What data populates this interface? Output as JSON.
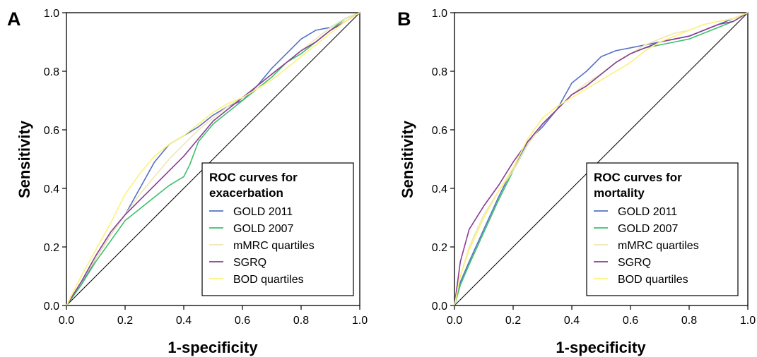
{
  "colors": {
    "GOLD 2011": "#5470c6",
    "GOLD 2007": "#3cc06a",
    "mMRC quartiles": "#f0e6b4",
    "SGRQ": "#8a3c94",
    "BOD quartiles": "#fbf27a"
  },
  "chart_data": [
    {
      "type": "line",
      "panel_label": "A",
      "xlabel": "1-specificity",
      "ylabel": "Sensitivity",
      "xlim": [
        0,
        1
      ],
      "ylim": [
        0,
        1
      ],
      "xticks": [
        "0.0",
        "0.2",
        "0.4",
        "0.6",
        "0.8",
        "1.0"
      ],
      "yticks": [
        "0.0",
        "0.2",
        "0.4",
        "0.6",
        "0.8",
        "1.0"
      ],
      "grid": false,
      "legend": {
        "title_lines": [
          "ROC curves for",
          "exacerbation"
        ],
        "position": "bottom-right"
      },
      "series": [
        {
          "name": "GOLD 2011",
          "x": [
            0,
            0.05,
            0.1,
            0.15,
            0.2,
            0.25,
            0.3,
            0.35,
            0.4,
            0.45,
            0.5,
            0.55,
            0.6,
            0.65,
            0.7,
            0.75,
            0.8,
            0.85,
            0.9,
            0.95,
            1.0
          ],
          "y": [
            0,
            0.07,
            0.16,
            0.24,
            0.31,
            0.4,
            0.49,
            0.55,
            0.58,
            0.61,
            0.65,
            0.68,
            0.7,
            0.75,
            0.81,
            0.86,
            0.91,
            0.94,
            0.95,
            0.98,
            1.0
          ]
        },
        {
          "name": "GOLD 2007",
          "x": [
            0,
            0.05,
            0.1,
            0.15,
            0.2,
            0.25,
            0.3,
            0.35,
            0.4,
            0.42,
            0.45,
            0.5,
            0.55,
            0.6,
            0.65,
            0.7,
            0.75,
            0.8,
            0.85,
            0.9,
            0.95,
            1.0
          ],
          "y": [
            0,
            0.07,
            0.15,
            0.22,
            0.29,
            0.33,
            0.37,
            0.41,
            0.44,
            0.48,
            0.56,
            0.62,
            0.66,
            0.7,
            0.74,
            0.78,
            0.83,
            0.86,
            0.9,
            0.94,
            0.98,
            1.0
          ]
        },
        {
          "name": "mMRC quartiles",
          "x": [
            0,
            0.05,
            0.1,
            0.15,
            0.2,
            0.25,
            0.3,
            0.35,
            0.4,
            0.45,
            0.5,
            0.55,
            0.6,
            0.65,
            0.7,
            0.75,
            0.8,
            0.85,
            0.9,
            0.95,
            1.0
          ],
          "y": [
            0,
            0.08,
            0.16,
            0.24,
            0.31,
            0.38,
            0.44,
            0.5,
            0.55,
            0.6,
            0.64,
            0.68,
            0.71,
            0.75,
            0.79,
            0.83,
            0.87,
            0.91,
            0.95,
            0.98,
            1.0
          ]
        },
        {
          "name": "SGRQ",
          "x": [
            0,
            0.05,
            0.1,
            0.15,
            0.2,
            0.25,
            0.3,
            0.35,
            0.4,
            0.45,
            0.5,
            0.55,
            0.6,
            0.65,
            0.7,
            0.75,
            0.8,
            0.85,
            0.9,
            0.95,
            1.0
          ],
          "y": [
            0,
            0.08,
            0.17,
            0.25,
            0.31,
            0.36,
            0.41,
            0.46,
            0.51,
            0.57,
            0.63,
            0.67,
            0.71,
            0.75,
            0.79,
            0.83,
            0.87,
            0.9,
            0.94,
            0.97,
            1.0
          ]
        },
        {
          "name": "BOD quartiles",
          "x": [
            0,
            0.05,
            0.1,
            0.15,
            0.2,
            0.25,
            0.3,
            0.35,
            0.4,
            0.45,
            0.5,
            0.55,
            0.6,
            0.65,
            0.7,
            0.75,
            0.8,
            0.85,
            0.9,
            0.95,
            1.0
          ],
          "y": [
            0,
            0.1,
            0.19,
            0.28,
            0.38,
            0.45,
            0.51,
            0.55,
            0.58,
            0.62,
            0.66,
            0.69,
            0.71,
            0.74,
            0.77,
            0.81,
            0.85,
            0.89,
            0.93,
            0.97,
            1.0
          ]
        }
      ]
    },
    {
      "type": "line",
      "panel_label": "B",
      "xlabel": "1-specificity",
      "ylabel": "Sensitivity",
      "xlim": [
        0,
        1
      ],
      "ylim": [
        0,
        1
      ],
      "xticks": [
        "0.0",
        "0.2",
        "0.4",
        "0.6",
        "0.8",
        "1.0"
      ],
      "yticks": [
        "0.0",
        "0.2",
        "0.4",
        "0.6",
        "0.8",
        "1.0"
      ],
      "grid": false,
      "legend": {
        "title_lines": [
          "ROC curves for",
          "mortality"
        ],
        "position": "bottom-right"
      },
      "series": [
        {
          "name": "GOLD 2011",
          "x": [
            0,
            0.02,
            0.05,
            0.1,
            0.15,
            0.2,
            0.25,
            0.3,
            0.35,
            0.4,
            0.45,
            0.5,
            0.55,
            0.6,
            0.65,
            0.7,
            0.75,
            0.8,
            0.85,
            0.9,
            0.95,
            1.0
          ],
          "y": [
            0,
            0.08,
            0.15,
            0.26,
            0.37,
            0.47,
            0.56,
            0.61,
            0.67,
            0.76,
            0.8,
            0.85,
            0.87,
            0.88,
            0.89,
            0.9,
            0.91,
            0.92,
            0.94,
            0.96,
            0.98,
            1.0
          ]
        },
        {
          "name": "GOLD 2007",
          "x": [
            0,
            0.02,
            0.05,
            0.1,
            0.15,
            0.2,
            0.25,
            0.3,
            0.35,
            0.4,
            0.45,
            0.5,
            0.55,
            0.6,
            0.65,
            0.7,
            0.75,
            0.8,
            0.85,
            0.9,
            0.95,
            1.0
          ],
          "y": [
            0,
            0.07,
            0.14,
            0.25,
            0.36,
            0.46,
            0.55,
            0.62,
            0.67,
            0.72,
            0.75,
            0.79,
            0.83,
            0.86,
            0.88,
            0.89,
            0.9,
            0.91,
            0.93,
            0.95,
            0.97,
            1.0
          ]
        },
        {
          "name": "mMRC quartiles",
          "x": [
            0,
            0.02,
            0.05,
            0.1,
            0.15,
            0.2,
            0.25,
            0.3,
            0.35,
            0.4,
            0.45,
            0.5,
            0.55,
            0.6,
            0.65,
            0.7,
            0.75,
            0.8,
            0.85,
            0.9,
            0.95,
            1.0
          ],
          "y": [
            0,
            0.1,
            0.2,
            0.31,
            0.39,
            0.46,
            0.55,
            0.62,
            0.67,
            0.72,
            0.76,
            0.79,
            0.83,
            0.86,
            0.89,
            0.91,
            0.93,
            0.94,
            0.96,
            0.97,
            0.98,
            1.0
          ]
        },
        {
          "name": "SGRQ",
          "x": [
            0,
            0.02,
            0.05,
            0.1,
            0.15,
            0.2,
            0.25,
            0.3,
            0.35,
            0.4,
            0.45,
            0.5,
            0.55,
            0.6,
            0.65,
            0.7,
            0.75,
            0.8,
            0.85,
            0.9,
            0.95,
            1.0
          ],
          "y": [
            0,
            0.15,
            0.26,
            0.34,
            0.41,
            0.49,
            0.56,
            0.62,
            0.67,
            0.72,
            0.75,
            0.79,
            0.83,
            0.86,
            0.88,
            0.9,
            0.91,
            0.92,
            0.94,
            0.96,
            0.97,
            1.0
          ]
        },
        {
          "name": "BOD quartiles",
          "x": [
            0,
            0.02,
            0.05,
            0.1,
            0.15,
            0.2,
            0.25,
            0.3,
            0.35,
            0.4,
            0.45,
            0.5,
            0.55,
            0.6,
            0.65,
            0.7,
            0.75,
            0.8,
            0.85,
            0.9,
            0.95,
            1.0
          ],
          "y": [
            0,
            0.1,
            0.19,
            0.3,
            0.39,
            0.47,
            0.57,
            0.64,
            0.68,
            0.71,
            0.74,
            0.77,
            0.8,
            0.83,
            0.87,
            0.9,
            0.92,
            0.94,
            0.96,
            0.97,
            0.98,
            1.0
          ]
        }
      ]
    }
  ]
}
